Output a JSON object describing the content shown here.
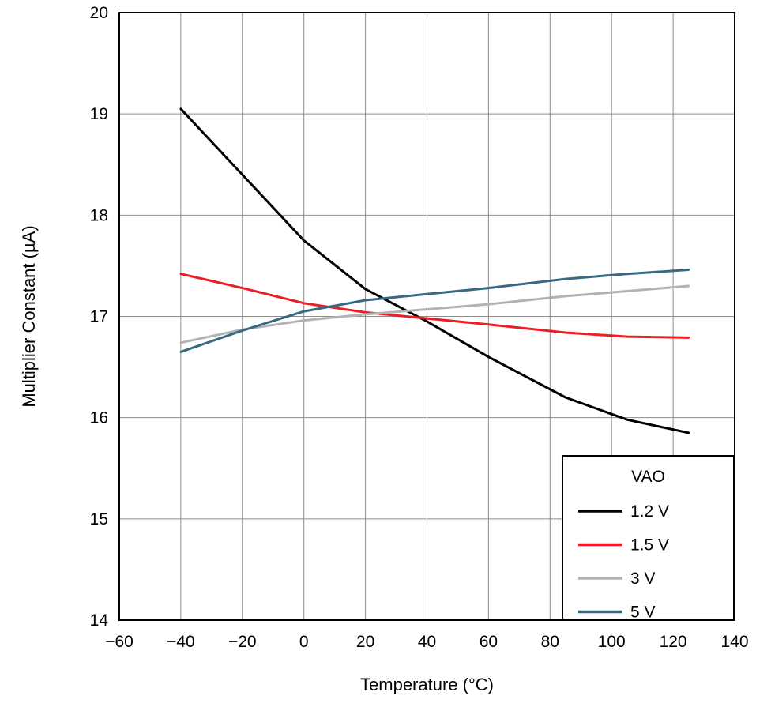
{
  "chart_data": {
    "type": "line",
    "title": "",
    "xlabel": "Temperature (°C)",
    "ylabel": "Multiplier Constant (µA)",
    "xlim": [
      -60,
      140
    ],
    "ylim": [
      14,
      20
    ],
    "xticks": [
      -60,
      -40,
      -20,
      0,
      20,
      40,
      60,
      80,
      100,
      120,
      140
    ],
    "yticks": [
      14,
      15,
      16,
      17,
      18,
      19,
      20
    ],
    "grid": true,
    "grid_color": "#8c8c8c",
    "axis_color": "#000000",
    "legend": {
      "title": "VAO",
      "position": "bottom-right"
    },
    "series": [
      {
        "name": "1.2 V",
        "color": "#000000",
        "points": [
          [
            -40,
            19.05
          ],
          [
            -20,
            18.4
          ],
          [
            0,
            17.75
          ],
          [
            20,
            17.27
          ],
          [
            40,
            16.95
          ],
          [
            60,
            16.6
          ],
          [
            85,
            16.2
          ],
          [
            105,
            15.98
          ],
          [
            125,
            15.85
          ]
        ]
      },
      {
        "name": "1.5 V",
        "color": "#ee1c25",
        "points": [
          [
            -40,
            17.42
          ],
          [
            -20,
            17.28
          ],
          [
            0,
            17.13
          ],
          [
            20,
            17.04
          ],
          [
            40,
            16.98
          ],
          [
            60,
            16.92
          ],
          [
            85,
            16.84
          ],
          [
            105,
            16.8
          ],
          [
            125,
            16.79
          ]
        ]
      },
      {
        "name": "3 V",
        "color": "#b3b3b3",
        "points": [
          [
            -40,
            16.74
          ],
          [
            -20,
            16.87
          ],
          [
            0,
            16.96
          ],
          [
            20,
            17.02
          ],
          [
            40,
            17.07
          ],
          [
            60,
            17.12
          ],
          [
            85,
            17.2
          ],
          [
            105,
            17.25
          ],
          [
            125,
            17.3
          ]
        ]
      },
      {
        "name": "5 V",
        "color": "#376a82",
        "points": [
          [
            -40,
            16.65
          ],
          [
            -20,
            16.86
          ],
          [
            0,
            17.05
          ],
          [
            20,
            17.16
          ],
          [
            40,
            17.22
          ],
          [
            60,
            17.28
          ],
          [
            85,
            17.37
          ],
          [
            105,
            17.42
          ],
          [
            125,
            17.46
          ]
        ]
      }
    ]
  }
}
